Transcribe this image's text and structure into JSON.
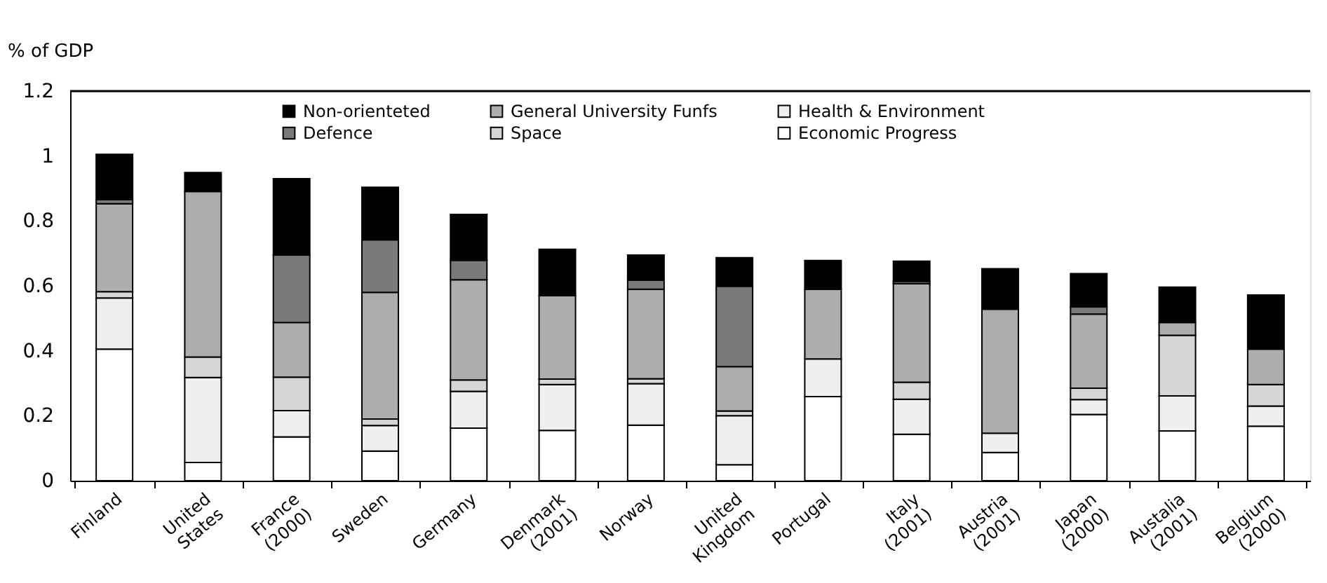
{
  "chart_data": {
    "type": "bar",
    "stacked": true,
    "ylabel": "% of GDP",
    "ylim": [
      0,
      1.2
    ],
    "yticks": [
      0,
      0.2,
      0.4,
      0.6,
      0.8,
      1,
      1.2
    ],
    "grid": false,
    "legend": "top",
    "categories": [
      "Finland",
      "United States",
      "France (2000)",
      "Sweden",
      "Germany",
      "Denmark (2001)",
      "Norway",
      "United Kingdom",
      "Portugal",
      "Italy (2001)",
      "Austria (2001)",
      "Japan (2000)",
      "Austalia (2001)",
      "Belgium (2000)"
    ],
    "series": [
      {
        "name": "Economic Progress",
        "color": "#ffffff",
        "values": [
          0.405,
          0.056,
          0.135,
          0.091,
          0.162,
          0.155,
          0.171,
          0.049,
          0.259,
          0.143,
          0.087,
          0.204,
          0.153,
          0.168
        ]
      },
      {
        "name": "Health & Environment",
        "color": "#efefef",
        "values": [
          0.158,
          0.262,
          0.081,
          0.079,
          0.113,
          0.141,
          0.128,
          0.151,
          0.116,
          0.108,
          0.059,
          0.046,
          0.108,
          0.062
        ]
      },
      {
        "name": "Space",
        "color": "#d6d6d6",
        "values": [
          0.019,
          0.063,
          0.103,
          0.02,
          0.035,
          0.017,
          0.015,
          0.015,
          null,
          0.052,
          0,
          0.035,
          0.187,
          0.066
        ]
      },
      {
        "name": "General University Funfs",
        "color": "#adadad",
        "values": [
          0.271,
          0.51,
          0.168,
          0.39,
          0.309,
          0.257,
          0.276,
          0.136,
          0.215,
          0.304,
          0.382,
          0.228,
          0.039,
          0.109
        ]
      },
      {
        "name": "Defence",
        "color": "#7a7a7a",
        "values": [
          0.013,
          0,
          0.208,
          0.162,
          0.06,
          0,
          0.028,
          0.248,
          0,
          0.007,
          0,
          0.022,
          0,
          0
        ]
      },
      {
        "name": "Non-orienteted",
        "color": "#000000",
        "values": [
          0.139,
          0.058,
          0.235,
          0.162,
          0.141,
          0.143,
          0.077,
          0.088,
          0.088,
          0.062,
          0.125,
          0.103,
          0.109,
          0.167
        ]
      }
    ]
  }
}
